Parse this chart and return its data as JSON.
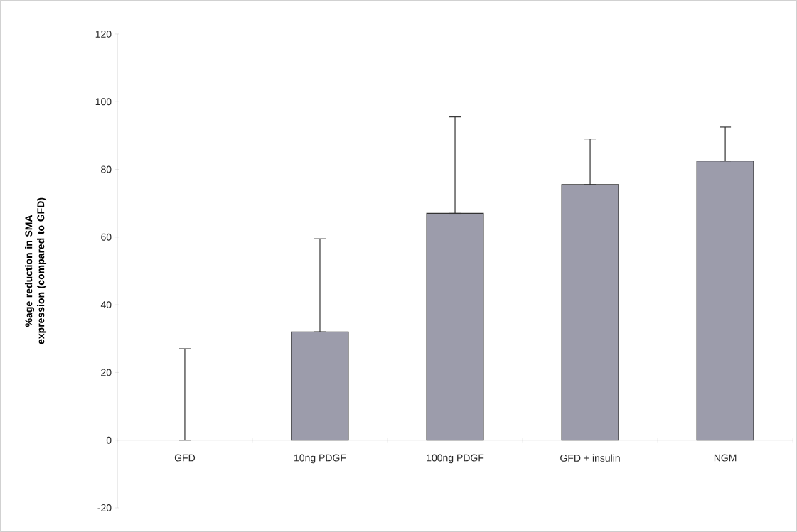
{
  "chart_data": {
    "type": "bar",
    "ylabel": "%age reduction in SMA expression (compared to GFD)",
    "categories": [
      "GFD",
      "10ng PDGF",
      "100ng PDGF",
      "GFD + insulin",
      "NGM"
    ],
    "values": [
      0,
      32,
      67,
      75.5,
      82.5
    ],
    "errors": [
      [
        0,
        27
      ],
      [
        32,
        59.5
      ],
      [
        67,
        95.5
      ],
      [
        75.5,
        89
      ],
      [
        82.5,
        92.5
      ]
    ],
    "color": "#9c9cab",
    "ylim": [
      -20,
      120
    ],
    "yticks": [
      -20,
      0,
      20,
      40,
      60,
      80,
      100,
      120
    ],
    "grid": false
  }
}
